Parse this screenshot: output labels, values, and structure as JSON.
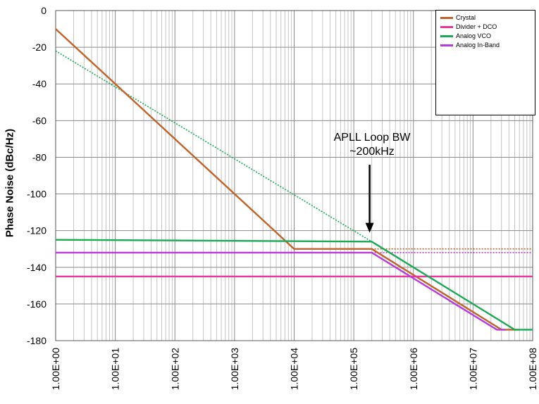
{
  "chart_data": {
    "type": "line",
    "title": "",
    "xlabel": "",
    "ylabel": "Phase Noise (dBc/Hz)",
    "xscale": "log",
    "xlim": [
      1,
      100000000
    ],
    "ylim": [
      -180,
      0
    ],
    "x_ticks": [
      "1.00E+00",
      "1.00E+01",
      "1.00E+02",
      "1.00E+03",
      "1.00E+04",
      "1.00E+05",
      "1.00E+06",
      "1.00E+07",
      "1.00E+08"
    ],
    "y_ticks": [
      "0",
      "-20",
      "-40",
      "-60",
      "-80",
      "-100",
      "-120",
      "-140",
      "-160",
      "-180"
    ],
    "grid": true,
    "legend_position": "top-right",
    "annotation": {
      "line1": "APLL Loop BW",
      "line2": "~200kHz",
      "x": 200000,
      "y": -120
    },
    "series": [
      {
        "name": "Crystal",
        "color": "#c0622b",
        "points": [
          [
            1,
            -10
          ],
          [
            10000,
            -130
          ],
          [
            200000,
            -130
          ],
          [
            30000000,
            -174
          ],
          [
            60000000,
            -174
          ]
        ]
      },
      {
        "name": "Divider + DCO",
        "color": "#e8359b",
        "points": [
          [
            1,
            -145
          ],
          [
            100000000,
            -145
          ]
        ]
      },
      {
        "name": "Analog VCO",
        "color": "#1aaa55",
        "points": [
          [
            1,
            -125
          ],
          [
            200000,
            -126
          ],
          [
            50000000,
            -174
          ],
          [
            100000000,
            -174
          ]
        ]
      },
      {
        "name": "Analog In-Band",
        "color": "#b93ad8",
        "points": [
          [
            1,
            -132
          ],
          [
            200000,
            -132
          ],
          [
            25000000,
            -174
          ],
          [
            35000000,
            -174
          ]
        ]
      }
    ],
    "dotted_extensions": [
      {
        "series": "Analog VCO",
        "color": "#1aaa55",
        "points": [
          [
            1,
            -22
          ],
          [
            200000,
            -126
          ]
        ]
      },
      {
        "series": "Crystal",
        "color": "#c0622b",
        "points": [
          [
            200000,
            -130
          ],
          [
            100000000,
            -130
          ]
        ]
      },
      {
        "series": "Analog In-Band",
        "color": "#b93ad8",
        "points": [
          [
            200000,
            -132
          ],
          [
            100000000,
            -132
          ]
        ]
      }
    ]
  }
}
